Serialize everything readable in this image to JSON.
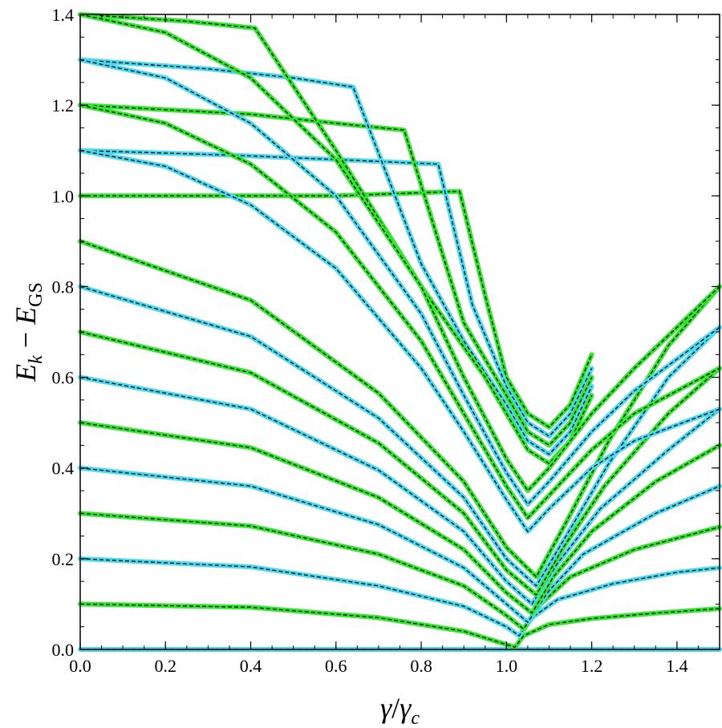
{
  "chart_data": {
    "type": "line",
    "title": "",
    "xlabel": "γ/γ_c",
    "ylabel": "E_k − E_GS",
    "xlabel_parts": {
      "main": "γ",
      "slash": "/",
      "sub_main": "γ",
      "sub": "c"
    },
    "ylabel_parts": {
      "a": "E",
      "a_sub": "k",
      "minus": " − ",
      "b": "E",
      "b_sub": "GS"
    },
    "xlim": [
      0.0,
      1.5
    ],
    "ylim": [
      0.0,
      1.4
    ],
    "x_ticks": [
      "0.0",
      "0.2",
      "0.4",
      "0.6",
      "0.8",
      "1.0",
      "1.2",
      "1.4"
    ],
    "y_ticks": [
      "0.0",
      "0.2",
      "0.4",
      "0.6",
      "0.8",
      "1.0",
      "1.2",
      "1.4"
    ],
    "grid": false,
    "legend": "none",
    "colors": {
      "green": "#33e62e",
      "cyan": "#4ad9f0",
      "dashed": "#000000"
    },
    "series": [
      {
        "color": "cyan",
        "values": [
          [
            0.0,
            0.0
          ],
          [
            1.5,
            0.0
          ]
        ]
      },
      {
        "color": "green",
        "values": [
          [
            0.0,
            0.1
          ],
          [
            0.4,
            0.093
          ],
          [
            0.7,
            0.07
          ],
          [
            0.9,
            0.04
          ],
          [
            1.02,
            0.005
          ],
          [
            1.04,
            0.03
          ],
          [
            1.1,
            0.055
          ],
          [
            1.2,
            0.068
          ],
          [
            1.35,
            0.08
          ],
          [
            1.5,
            0.09
          ]
        ]
      },
      {
        "color": "cyan",
        "values": [
          [
            0.0,
            0.2
          ],
          [
            0.4,
            0.182
          ],
          [
            0.7,
            0.14
          ],
          [
            0.9,
            0.095
          ],
          [
            1.0,
            0.05
          ],
          [
            1.03,
            0.03
          ],
          [
            1.06,
            0.07
          ],
          [
            1.12,
            0.11
          ],
          [
            1.25,
            0.145
          ],
          [
            1.4,
            0.17
          ],
          [
            1.5,
            0.18
          ]
        ]
      },
      {
        "color": "green",
        "values": [
          [
            0.0,
            0.3
          ],
          [
            0.4,
            0.272
          ],
          [
            0.7,
            0.21
          ],
          [
            0.9,
            0.14
          ],
          [
            1.0,
            0.075
          ],
          [
            1.04,
            0.045
          ],
          [
            1.08,
            0.1
          ],
          [
            1.15,
            0.16
          ],
          [
            1.3,
            0.22
          ],
          [
            1.5,
            0.27
          ]
        ]
      },
      {
        "color": "cyan",
        "values": [
          [
            0.0,
            0.4
          ],
          [
            0.4,
            0.36
          ],
          [
            0.7,
            0.275
          ],
          [
            0.9,
            0.18
          ],
          [
            1.0,
            0.1
          ],
          [
            1.05,
            0.06
          ],
          [
            1.1,
            0.13
          ],
          [
            1.18,
            0.21
          ],
          [
            1.35,
            0.3
          ],
          [
            1.5,
            0.36
          ]
        ]
      },
      {
        "color": "green",
        "values": [
          [
            0.0,
            0.5
          ],
          [
            0.4,
            0.445
          ],
          [
            0.7,
            0.335
          ],
          [
            0.9,
            0.22
          ],
          [
            1.0,
            0.125
          ],
          [
            1.06,
            0.08
          ],
          [
            1.11,
            0.16
          ],
          [
            1.2,
            0.26
          ],
          [
            1.35,
            0.37
          ],
          [
            1.5,
            0.45
          ]
        ]
      },
      {
        "color": "cyan",
        "values": [
          [
            0.0,
            0.6
          ],
          [
            0.4,
            0.53
          ],
          [
            0.7,
            0.395
          ],
          [
            0.9,
            0.26
          ],
          [
            1.0,
            0.15
          ],
          [
            1.06,
            0.1
          ],
          [
            1.12,
            0.19
          ],
          [
            1.22,
            0.31
          ],
          [
            1.38,
            0.44
          ],
          [
            1.5,
            0.53
          ]
        ]
      },
      {
        "color": "green",
        "values": [
          [
            0.0,
            0.7
          ],
          [
            0.4,
            0.61
          ],
          [
            0.7,
            0.455
          ],
          [
            0.9,
            0.3
          ],
          [
            1.0,
            0.175
          ],
          [
            1.07,
            0.12
          ],
          [
            1.13,
            0.22
          ],
          [
            1.23,
            0.36
          ],
          [
            1.38,
            0.52
          ],
          [
            1.5,
            0.62
          ]
        ]
      },
      {
        "color": "cyan",
        "values": [
          [
            0.0,
            0.8
          ],
          [
            0.4,
            0.69
          ],
          [
            0.7,
            0.51
          ],
          [
            0.9,
            0.335
          ],
          [
            1.0,
            0.2
          ],
          [
            1.07,
            0.14
          ],
          [
            1.14,
            0.25
          ],
          [
            1.24,
            0.41
          ],
          [
            1.38,
            0.6
          ],
          [
            1.5,
            0.71
          ]
        ]
      },
      {
        "color": "green",
        "values": [
          [
            0.0,
            0.9
          ],
          [
            0.4,
            0.77
          ],
          [
            0.7,
            0.565
          ],
          [
            0.9,
            0.37
          ],
          [
            1.0,
            0.225
          ],
          [
            1.07,
            0.16
          ],
          [
            1.14,
            0.28
          ],
          [
            1.24,
            0.46
          ],
          [
            1.38,
            0.67
          ],
          [
            1.5,
            0.8
          ]
        ]
      },
      {
        "color": "green",
        "values": [
          [
            0.0,
            1.0
          ],
          [
            0.3,
            1.0
          ],
          [
            0.6,
            1.0
          ],
          [
            0.89,
            1.01
          ],
          [
            0.95,
            0.78
          ],
          [
            1.0,
            0.6
          ],
          [
            1.05,
            0.52
          ],
          [
            1.1,
            0.49
          ],
          [
            1.15,
            0.54
          ],
          [
            1.2,
            0.65
          ]
        ]
      },
      {
        "color": "cyan",
        "values": [
          [
            0.0,
            1.1
          ],
          [
            0.35,
            1.09
          ],
          [
            0.6,
            1.08
          ],
          [
            0.84,
            1.07
          ],
          [
            0.92,
            0.76
          ],
          [
            1.0,
            0.58
          ],
          [
            1.05,
            0.5
          ],
          [
            1.1,
            0.47
          ],
          [
            1.15,
            0.52
          ],
          [
            1.2,
            0.62
          ]
        ]
      },
      {
        "color": "green",
        "values": [
          [
            0.0,
            1.2
          ],
          [
            0.4,
            1.18
          ],
          [
            0.6,
            1.16
          ],
          [
            0.76,
            1.145
          ],
          [
            0.9,
            0.72
          ],
          [
            1.0,
            0.56
          ],
          [
            1.05,
            0.48
          ],
          [
            1.1,
            0.45
          ],
          [
            1.15,
            0.5
          ],
          [
            1.2,
            0.6
          ]
        ]
      },
      {
        "color": "cyan",
        "values": [
          [
            0.0,
            1.3
          ],
          [
            0.3,
            1.28
          ],
          [
            0.5,
            1.26
          ],
          [
            0.64,
            1.24
          ],
          [
            0.8,
            0.85
          ],
          [
            0.9,
            0.68
          ],
          [
            1.0,
            0.54
          ],
          [
            1.05,
            0.46
          ],
          [
            1.1,
            0.43
          ],
          [
            1.15,
            0.48
          ],
          [
            1.2,
            0.58
          ]
        ]
      },
      {
        "color": "green",
        "values": [
          [
            0.0,
            1.4
          ],
          [
            0.25,
            1.385
          ],
          [
            0.41,
            1.37
          ],
          [
            0.6,
            1.1
          ],
          [
            0.8,
            0.8
          ],
          [
            0.95,
            0.6
          ],
          [
            1.05,
            0.44
          ],
          [
            1.1,
            0.41
          ],
          [
            1.15,
            0.46
          ],
          [
            1.2,
            0.56
          ]
        ]
      },
      {
        "color": "green",
        "values": [
          [
            0.0,
            1.4
          ],
          [
            0.2,
            1.36
          ],
          [
            0.4,
            1.26
          ],
          [
            0.6,
            1.08
          ],
          [
            0.8,
            0.8
          ],
          [
            0.9,
            0.6
          ],
          [
            1.0,
            0.42
          ],
          [
            1.05,
            0.35
          ],
          [
            1.1,
            0.4
          ],
          [
            1.2,
            0.52
          ],
          [
            1.3,
            0.62
          ],
          [
            1.5,
            0.8
          ]
        ]
      },
      {
        "color": "cyan",
        "values": [
          [
            0.0,
            1.3
          ],
          [
            0.2,
            1.26
          ],
          [
            0.4,
            1.16
          ],
          [
            0.6,
            1.0
          ],
          [
            0.8,
            0.74
          ],
          [
            0.9,
            0.56
          ],
          [
            1.0,
            0.39
          ],
          [
            1.05,
            0.32
          ],
          [
            1.1,
            0.37
          ],
          [
            1.2,
            0.48
          ],
          [
            1.3,
            0.57
          ],
          [
            1.5,
            0.71
          ]
        ]
      },
      {
        "color": "green",
        "values": [
          [
            0.0,
            1.2
          ],
          [
            0.2,
            1.16
          ],
          [
            0.4,
            1.07
          ],
          [
            0.6,
            0.92
          ],
          [
            0.8,
            0.68
          ],
          [
            0.9,
            0.52
          ],
          [
            1.0,
            0.36
          ],
          [
            1.05,
            0.29
          ],
          [
            1.1,
            0.34
          ],
          [
            1.2,
            0.44
          ],
          [
            1.3,
            0.52
          ],
          [
            1.5,
            0.62
          ]
        ]
      },
      {
        "color": "cyan",
        "values": [
          [
            0.0,
            1.1
          ],
          [
            0.2,
            1.065
          ],
          [
            0.4,
            0.98
          ],
          [
            0.6,
            0.84
          ],
          [
            0.8,
            0.62
          ],
          [
            0.9,
            0.48
          ],
          [
            1.0,
            0.33
          ],
          [
            1.05,
            0.26
          ],
          [
            1.1,
            0.31
          ],
          [
            1.2,
            0.4
          ],
          [
            1.3,
            0.46
          ],
          [
            1.5,
            0.53
          ]
        ]
      }
    ]
  }
}
